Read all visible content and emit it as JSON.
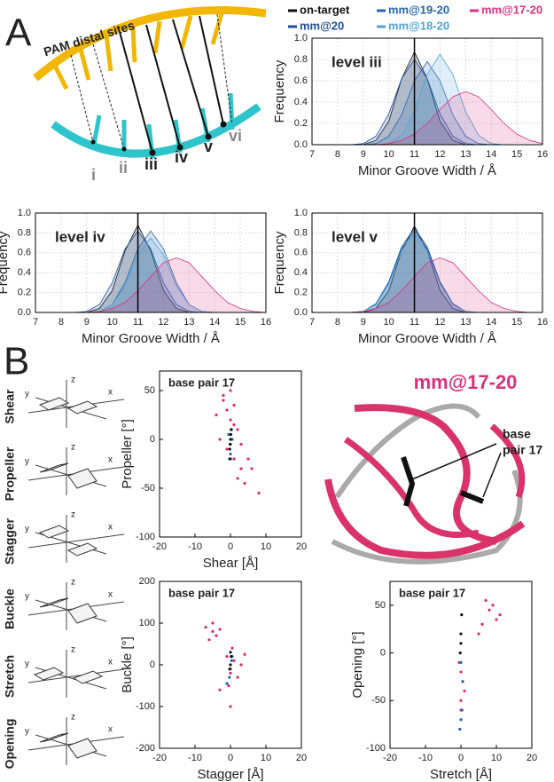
{
  "panel_a": {
    "label": "A",
    "pam_label": "PAM distal sites",
    "levels": [
      "i",
      "ii",
      "iii",
      "iv",
      "v",
      "vi"
    ]
  },
  "legend": [
    {
      "name": "on-target",
      "color": "#111111"
    },
    {
      "name": "mm@20",
      "color": "#1d4f9c"
    },
    {
      "name": "mm@19-20",
      "color": "#2466b0"
    },
    {
      "name": "mm@18-20",
      "color": "#4ea3d6"
    },
    {
      "name": "mm@17-20",
      "color": "#d9317f"
    }
  ],
  "panel_b": {
    "label": "B",
    "parameters": [
      "Shear",
      "Propeller",
      "Stagger",
      "Buckle",
      "Stretch",
      "Opening"
    ],
    "schematic_axes": [
      "z",
      "y",
      "x"
    ],
    "structure_title": "mm@17-20",
    "structure_label": [
      "base",
      "pair 17"
    ]
  },
  "chart_data": [
    {
      "type": "line",
      "annotation": "level iii",
      "xlabel": "Minor Groove Width / Å",
      "ylabel": "Frequency",
      "vline": 11,
      "grid": true,
      "x": [
        7,
        7.5,
        8,
        8.5,
        9,
        9.5,
        10,
        10.5,
        11,
        11.5,
        12,
        12.5,
        13,
        13.5,
        14,
        14.5,
        15,
        15.5,
        16
      ],
      "xlim": [
        7,
        16
      ],
      "xticks": [
        7,
        8,
        9,
        10,
        11,
        12,
        13,
        14,
        15,
        16
      ],
      "ylim": [
        0,
        1
      ],
      "yticks": [
        {
          "value": 0,
          "label": "0.0"
        },
        {
          "value": 0.2,
          "label": "0.2"
        },
        {
          "value": 0.4,
          "label": "0.4"
        },
        {
          "value": 0.6,
          "label": "0.6"
        },
        {
          "value": 0.8,
          "label": "0.8"
        },
        {
          "value": 1,
          "label": "1.0"
        }
      ],
      "series": [
        {
          "color": "#111111",
          "values": [
            0,
            0,
            0,
            0,
            0,
            0.04,
            0.22,
            0.62,
            0.87,
            0.62,
            0.22,
            0.04,
            0,
            0,
            0,
            0,
            0,
            0,
            0
          ]
        },
        {
          "color": "#1d4f9c",
          "values": [
            0,
            0,
            0,
            0,
            0.01,
            0.08,
            0.29,
            0.62,
            0.8,
            0.62,
            0.29,
            0.08,
            0.01,
            0,
            0,
            0,
            0,
            0,
            0
          ]
        },
        {
          "color": "#2466b0",
          "values": [
            0,
            0,
            0,
            0,
            0,
            0.01,
            0.08,
            0.28,
            0.6,
            0.78,
            0.6,
            0.28,
            0.08,
            0.01,
            0,
            0,
            0,
            0,
            0
          ]
        },
        {
          "color": "#4ea3d6",
          "values": [
            0,
            0,
            0,
            0,
            0,
            0,
            0.01,
            0.09,
            0.31,
            0.66,
            0.85,
            0.66,
            0.31,
            0.09,
            0.01,
            0,
            0,
            0,
            0
          ]
        },
        {
          "color": "#d9317f",
          "values": [
            0,
            0,
            0,
            0,
            0,
            0,
            0.01,
            0.04,
            0.1,
            0.2,
            0.33,
            0.45,
            0.5,
            0.45,
            0.33,
            0.2,
            0.1,
            0.04,
            0.01
          ]
        }
      ]
    },
    {
      "type": "line",
      "annotation": "level iv",
      "xlabel": "Minor Groove Width / Å",
      "ylabel": "Frequency",
      "vline": 11,
      "grid": true,
      "x": [
        7,
        7.5,
        8,
        8.5,
        9,
        9.5,
        10,
        10.5,
        11,
        11.5,
        12,
        12.5,
        13,
        13.5,
        14,
        14.5,
        15,
        15.5,
        16
      ],
      "xlim": [
        7,
        16
      ],
      "xticks": [
        7,
        8,
        9,
        10,
        11,
        12,
        13,
        14,
        15,
        16
      ],
      "ylim": [
        0,
        1
      ],
      "yticks": [
        {
          "value": 0,
          "label": "0.0"
        },
        {
          "value": 0.2,
          "label": "0.2"
        },
        {
          "value": 0.4,
          "label": "0.4"
        },
        {
          "value": 0.6,
          "label": "0.6"
        },
        {
          "value": 0.8,
          "label": "0.8"
        },
        {
          "value": 1,
          "label": "1.0"
        }
      ],
      "series": [
        {
          "color": "#111111",
          "values": [
            0,
            0,
            0,
            0,
            0,
            0.04,
            0.22,
            0.62,
            0.88,
            0.62,
            0.22,
            0.04,
            0,
            0,
            0,
            0,
            0,
            0,
            0
          ]
        },
        {
          "color": "#1d4f9c",
          "values": [
            0,
            0,
            0,
            0,
            0.01,
            0.08,
            0.3,
            0.64,
            0.82,
            0.64,
            0.3,
            0.08,
            0.01,
            0,
            0,
            0,
            0,
            0,
            0
          ]
        },
        {
          "color": "#2466b0",
          "values": [
            0,
            0,
            0,
            0,
            0,
            0.01,
            0.08,
            0.3,
            0.64,
            0.82,
            0.64,
            0.3,
            0.08,
            0.01,
            0,
            0,
            0,
            0,
            0
          ]
        },
        {
          "color": "#4ea3d6",
          "values": [
            0,
            0,
            0,
            0,
            0,
            0.01,
            0.08,
            0.27,
            0.58,
            0.75,
            0.58,
            0.27,
            0.08,
            0.01,
            0,
            0,
            0,
            0,
            0
          ]
        },
        {
          "color": "#d9317f",
          "values": [
            0,
            0,
            0,
            0,
            0,
            0.01,
            0.04,
            0.1,
            0.22,
            0.36,
            0.5,
            0.55,
            0.5,
            0.36,
            0.22,
            0.1,
            0.04,
            0.01,
            0
          ]
        }
      ]
    },
    {
      "type": "line",
      "annotation": "level v",
      "xlabel": "Minor Groove Width / Å",
      "ylabel": "Frequency",
      "vline": 11,
      "grid": true,
      "x": [
        7,
        7.5,
        8,
        8.5,
        9,
        9.5,
        10,
        10.5,
        11,
        11.5,
        12,
        12.5,
        13,
        13.5,
        14,
        14.5,
        15,
        15.5,
        16
      ],
      "xlim": [
        7,
        16
      ],
      "xticks": [
        7,
        8,
        9,
        10,
        11,
        12,
        13,
        14,
        15,
        16
      ],
      "ylim": [
        0,
        1
      ],
      "yticks": [
        {
          "value": 0,
          "label": "0.0"
        },
        {
          "value": 0.2,
          "label": "0.2"
        },
        {
          "value": 0.4,
          "label": "0.4"
        },
        {
          "value": 0.6,
          "label": "0.6"
        },
        {
          "value": 0.8,
          "label": "0.8"
        },
        {
          "value": 1,
          "label": "1.0"
        }
      ],
      "series": [
        {
          "color": "#111111",
          "values": [
            0,
            0,
            0,
            0,
            0,
            0.04,
            0.22,
            0.62,
            0.87,
            0.62,
            0.22,
            0.04,
            0,
            0,
            0,
            0,
            0,
            0,
            0
          ]
        },
        {
          "color": "#1d4f9c",
          "values": [
            0,
            0,
            0,
            0,
            0.01,
            0.09,
            0.31,
            0.66,
            0.85,
            0.66,
            0.31,
            0.09,
            0.01,
            0,
            0,
            0,
            0,
            0,
            0
          ]
        },
        {
          "color": "#2466b0",
          "values": [
            0,
            0,
            0,
            0,
            0.01,
            0.08,
            0.3,
            0.64,
            0.83,
            0.64,
            0.3,
            0.08,
            0.01,
            0,
            0,
            0,
            0,
            0,
            0
          ]
        },
        {
          "color": "#4ea3d6",
          "values": [
            0,
            0,
            0,
            0,
            0.01,
            0.08,
            0.29,
            0.62,
            0.8,
            0.62,
            0.29,
            0.08,
            0.01,
            0,
            0,
            0,
            0,
            0,
            0
          ]
        },
        {
          "color": "#d9317f",
          "values": [
            0,
            0,
            0,
            0,
            0.01,
            0.04,
            0.1,
            0.22,
            0.36,
            0.5,
            0.55,
            0.5,
            0.36,
            0.22,
            0.1,
            0.04,
            0.01,
            0,
            0
          ]
        }
      ]
    },
    {
      "type": "scatter",
      "annotation": "base pair 17",
      "xlabel": "Shear [Å]",
      "ylabel": "Propeller [°]",
      "xlim": [
        -20,
        20
      ],
      "xticks": [
        -20,
        -10,
        0,
        10,
        20
      ],
      "ylim": [
        -100,
        70
      ],
      "yticks": [
        -100,
        -50,
        0,
        50
      ],
      "series": [
        {
          "color": "#e0286e",
          "x": [
            -2,
            -1,
            0,
            1,
            2,
            -3,
            -1,
            1,
            3,
            2,
            4,
            6,
            8,
            5,
            -2,
            0,
            1,
            -4,
            3
          ],
          "values": [
            40,
            30,
            20,
            35,
            10,
            0,
            -10,
            -20,
            -30,
            -40,
            -45,
            -30,
            -55,
            -20,
            45,
            50,
            15,
            25,
            -5
          ]
        },
        {
          "color": "#2a5fb0",
          "x": [
            -0.5,
            0,
            0.5,
            0,
            0.3,
            -0.3
          ],
          "values": [
            5,
            -5,
            0,
            -15,
            10,
            -20
          ]
        },
        {
          "color": "#111111",
          "x": [
            0,
            0.2,
            -0.2,
            0,
            0.1,
            -0.1
          ],
          "values": [
            0,
            10,
            -10,
            -20,
            5,
            -5
          ]
        }
      ]
    },
    {
      "type": "scatter",
      "annotation": "base pair 17",
      "xlabel": "Stagger [Å]",
      "ylabel": "Buckle [°]",
      "xlim": [
        -20,
        20
      ],
      "xticks": [
        -20,
        -10,
        0,
        10,
        20
      ],
      "ylim": [
        -200,
        200
      ],
      "yticks": [
        -200,
        -100,
        0,
        100,
        200
      ],
      "series": [
        {
          "color": "#e0286e",
          "x": [
            -7,
            -5,
            -4,
            -6,
            -3,
            -5,
            -1,
            0,
            1,
            2,
            0.5,
            -0.5,
            3,
            -3,
            0,
            4
          ],
          "values": [
            90,
            80,
            70,
            60,
            85,
            100,
            20,
            -20,
            10,
            -30,
            40,
            -50,
            0,
            -60,
            -100,
            25
          ]
        },
        {
          "color": "#2a5fb0",
          "x": [
            0,
            0.3,
            -0.3,
            0.5,
            -1
          ],
          "values": [
            -10,
            10,
            -30,
            20,
            -45
          ]
        },
        {
          "color": "#111111",
          "x": [
            0,
            0.2,
            -0.2,
            0
          ],
          "values": [
            0,
            20,
            -10,
            30
          ]
        }
      ]
    },
    {
      "type": "scatter",
      "annotation": "base pair 17",
      "xlabel": "Stretch [Å]",
      "ylabel": "Opening [°]",
      "xlim": [
        -20,
        20
      ],
      "xticks": [
        -20,
        -10,
        0,
        10,
        20
      ],
      "ylim": [
        -100,
        75
      ],
      "yticks": [
        -100,
        -50,
        0,
        50
      ],
      "series": [
        {
          "color": "#e0286e",
          "x": [
            6,
            8,
            9,
            10,
            7,
            11,
            5,
            0,
            0.5,
            -0.5,
            0,
            1,
            0
          ],
          "values": [
            30,
            45,
            50,
            35,
            55,
            40,
            20,
            -20,
            -30,
            -10,
            -50,
            -40,
            -60
          ]
        },
        {
          "color": "#2a5fb0",
          "x": [
            0,
            0.3,
            -0.3,
            0.5,
            0
          ],
          "values": [
            -10,
            -60,
            -80,
            -30,
            -70
          ]
        },
        {
          "color": "#111111",
          "x": [
            0,
            0.2,
            -0.2,
            0
          ],
          "values": [
            20,
            40,
            0,
            10
          ]
        }
      ]
    }
  ]
}
